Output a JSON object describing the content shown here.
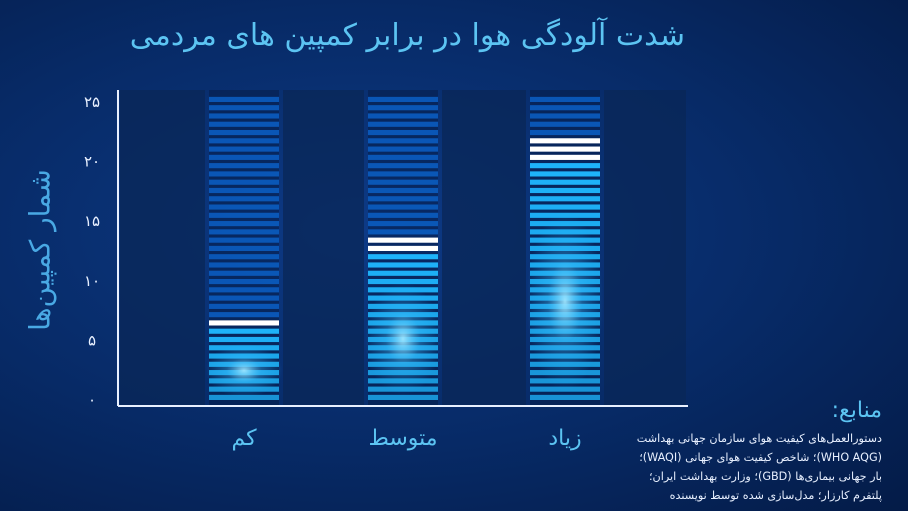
{
  "chart_data": {
    "type": "bar",
    "title": "شدت آلودگی هوا در برابر کمپین های مردمی",
    "xlabel": "",
    "ylabel": "شمار کمپین‌ها",
    "categories": [
      "کم",
      "متوسط",
      "زیاد"
    ],
    "values": [
      6.5,
      13.5,
      21.8
    ],
    "ylim": [
      0,
      25
    ],
    "yticks": [
      {
        "value": 0,
        "label": "۰"
      },
      {
        "value": 5,
        "label": "۵"
      },
      {
        "value": 10,
        "label": "۱۰"
      },
      {
        "value": 15,
        "label": "۱۵"
      },
      {
        "value": 20,
        "label": "۲۰"
      },
      {
        "value": 25,
        "label": "۲۵"
      }
    ],
    "grid": false,
    "legend": "none"
  },
  "sources": {
    "title": "منابع:",
    "lines": [
      "دستورالعمل‌های کیفیت هوای سازمان جهانی بهداشت",
      "(WHO AQG)؛ شاخص کیفیت هوای جهانی (WAQI)؛",
      "بار جهانی بیماری‌ها (GBD)؛ وزارت بهداشت ایران؛",
      "پلتفرم کارزار؛ مدل‌سازی شده توسط نویسنده"
    ]
  },
  "colors": {
    "background": "#072a66",
    "plot_band": "#0a2757",
    "stripe_dim": "#0b5fc6",
    "stripe_bright": "#1fb8ff",
    "stripe_top": "#ffffff",
    "accent_text": "#5cc4f2"
  }
}
